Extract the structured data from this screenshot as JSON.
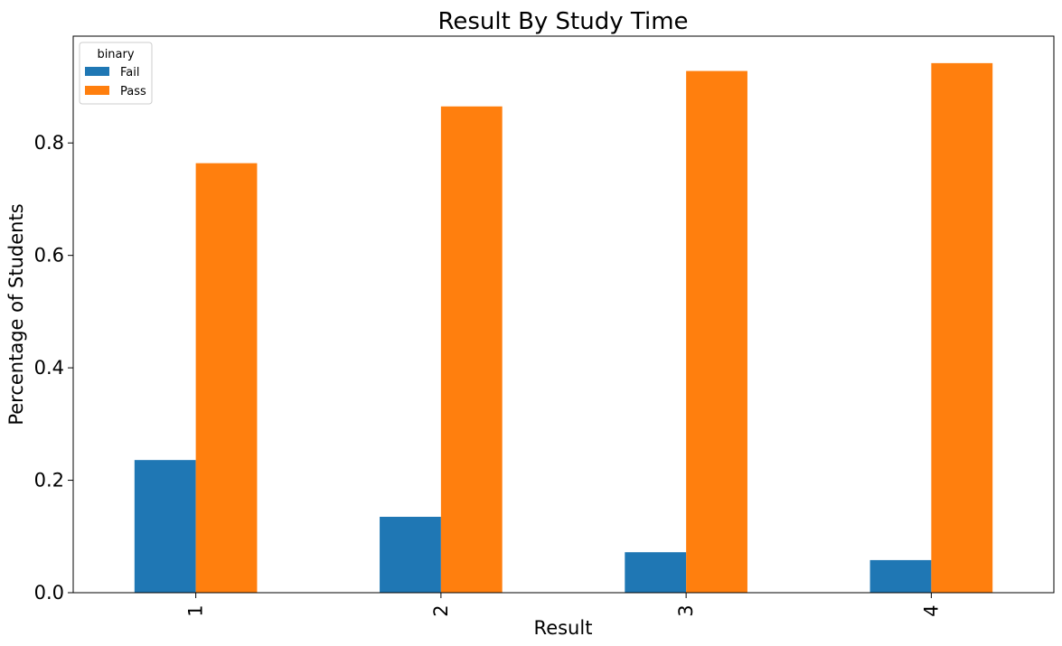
{
  "chart_data": {
    "type": "bar",
    "title": "Result By Study Time",
    "xlabel": "Result",
    "ylabel": "Percentage of Students",
    "categories": [
      "1",
      "2",
      "3",
      "4"
    ],
    "series": [
      {
        "name": "Fail",
        "color": "#1f77b4",
        "values": [
          0.236,
          0.135,
          0.072,
          0.058
        ]
      },
      {
        "name": "Pass",
        "color": "#ff7f0e",
        "values": [
          0.764,
          0.865,
          0.928,
          0.942
        ]
      }
    ],
    "ylim": [
      0,
      0.99
    ],
    "yticks": [
      0.0,
      0.2,
      0.4,
      0.6,
      0.8
    ],
    "ytick_labels": [
      "0.0",
      "0.2",
      "0.4",
      "0.6",
      "0.8"
    ],
    "legend": {
      "title": "binary",
      "placement": "upper-left"
    },
    "grid": false
  }
}
